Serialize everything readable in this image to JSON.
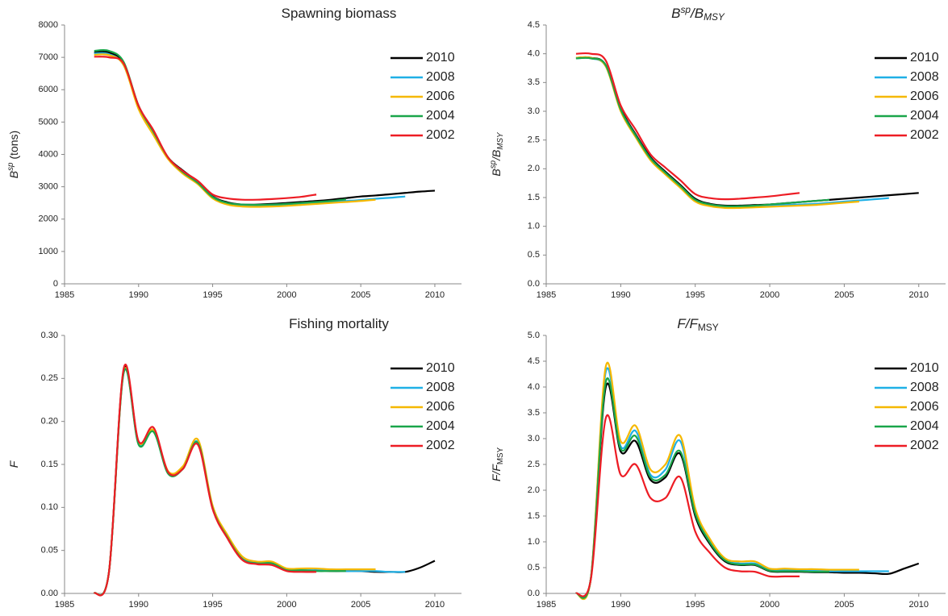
{
  "chart_data": [
    {
      "type": "line",
      "title": [
        {
          "text": "Spawning biomass"
        }
      ],
      "ylabel": [
        {
          "text": "B",
          "italic": true
        },
        {
          "text": "sp",
          "italic": true,
          "shift": "sup"
        },
        {
          "text": " (tons)"
        }
      ],
      "x": [
        1987,
        1988,
        1989,
        1990,
        1991,
        1992,
        1993,
        1994,
        1995,
        1996,
        1997,
        1998,
        1999,
        2000,
        2001,
        2002,
        2003,
        2004,
        2005,
        2006,
        2007,
        2008,
        2009,
        2010
      ],
      "xlim": [
        1985,
        2011.8
      ],
      "xticks": [
        1985,
        1990,
        1995,
        2000,
        2005,
        2010
      ],
      "ylim": [
        0,
        8000
      ],
      "yticks": [
        0,
        1000,
        2000,
        3000,
        4000,
        5000,
        6000,
        7000,
        8000
      ],
      "legend": "upper right",
      "series": [
        {
          "name": "2010",
          "color": "#000000",
          "values": [
            7150,
            7150,
            6800,
            5500,
            4700,
            3900,
            3500,
            3150,
            2700,
            2520,
            2450,
            2450,
            2470,
            2500,
            2530,
            2560,
            2600,
            2650,
            2700,
            2730,
            2770,
            2810,
            2850,
            2880
          ]
        },
        {
          "name": "2008",
          "color": "#1fb0e6",
          "values": [
            7120,
            7100,
            6750,
            5450,
            4650,
            3880,
            3450,
            3120,
            2680,
            2490,
            2420,
            2410,
            2420,
            2440,
            2470,
            2500,
            2530,
            2560,
            2590,
            2630,
            2660,
            2700,
            null,
            null
          ]
        },
        {
          "name": "2006",
          "color": "#f5b800",
          "values": [
            7080,
            7070,
            6750,
            5400,
            4600,
            3850,
            3400,
            3080,
            2640,
            2450,
            2390,
            2380,
            2390,
            2410,
            2440,
            2470,
            2500,
            2530,
            2560,
            2600,
            null,
            null,
            null,
            null
          ]
        },
        {
          "name": "2004",
          "color": "#1aa64a",
          "values": [
            7200,
            7200,
            6850,
            5500,
            4700,
            3900,
            3450,
            3120,
            2680,
            2500,
            2450,
            2440,
            2450,
            2470,
            2500,
            2530,
            2560,
            2610,
            null,
            null,
            null,
            null,
            null,
            null
          ]
        },
        {
          "name": "2002",
          "color": "#ed1c24",
          "values": [
            7020,
            7000,
            6800,
            5500,
            4750,
            3900,
            3480,
            3180,
            2760,
            2640,
            2600,
            2600,
            2620,
            2650,
            2690,
            2760,
            null,
            null,
            null,
            null,
            null,
            null,
            null,
            null
          ]
        }
      ]
    },
    {
      "type": "line",
      "title": [
        {
          "text": "B",
          "italic": true
        },
        {
          "text": "sp",
          "italic": true,
          "shift": "sup"
        },
        {
          "text": "/B",
          "italic": true
        },
        {
          "text": "MSY",
          "italic": true,
          "shift": "sub"
        }
      ],
      "ylabel": [
        {
          "text": "B",
          "italic": true
        },
        {
          "text": "sp",
          "italic": true,
          "shift": "sup"
        },
        {
          "text": "/B",
          "italic": true
        },
        {
          "text": "MSY",
          "italic": true,
          "shift": "sub"
        }
      ],
      "x": [
        1987,
        1988,
        1989,
        1990,
        1991,
        1992,
        1993,
        1994,
        1995,
        1996,
        1997,
        1998,
        1999,
        2000,
        2001,
        2002,
        2003,
        2004,
        2005,
        2006,
        2007,
        2008,
        2009,
        2010
      ],
      "xlim": [
        1985,
        2011.8
      ],
      "xticks": [
        1985,
        1990,
        1995,
        2000,
        2005,
        2010
      ],
      "ylim": [
        0,
        4.5
      ],
      "yticks": [
        {
          "value": 0,
          "label": "0.0"
        },
        0.5,
        {
          "value": 1,
          "label": "1.0"
        },
        1.5,
        {
          "value": 2,
          "label": "2.0"
        },
        2.5,
        {
          "value": 3,
          "label": "3.0"
        },
        3.5,
        {
          "value": 4,
          "label": "4.0"
        },
        4.5
      ],
      "legend": "upper right",
      "series": [
        {
          "name": "2010",
          "color": "#000000",
          "values": [
            3.93,
            3.93,
            3.8,
            3.05,
            2.6,
            2.2,
            1.95,
            1.72,
            1.48,
            1.39,
            1.36,
            1.36,
            1.37,
            1.38,
            1.4,
            1.42,
            1.44,
            1.46,
            1.48,
            1.5,
            1.52,
            1.54,
            1.56,
            1.58
          ]
        },
        {
          "name": "2008",
          "color": "#1fb0e6",
          "values": [
            3.92,
            3.92,
            3.78,
            3.02,
            2.57,
            2.17,
            1.92,
            1.69,
            1.45,
            1.37,
            1.34,
            1.34,
            1.35,
            1.36,
            1.37,
            1.38,
            1.39,
            1.41,
            1.43,
            1.45,
            1.47,
            1.49,
            null,
            null
          ]
        },
        {
          "name": "2006",
          "color": "#f5b800",
          "values": [
            3.93,
            3.93,
            3.78,
            3.0,
            2.55,
            2.15,
            1.9,
            1.67,
            1.43,
            1.35,
            1.32,
            1.32,
            1.33,
            1.34,
            1.35,
            1.36,
            1.37,
            1.39,
            1.41,
            1.43,
            null,
            null,
            null,
            null
          ]
        },
        {
          "name": "2004",
          "color": "#1aa64a",
          "values": [
            3.92,
            3.92,
            3.8,
            3.03,
            2.58,
            2.18,
            1.93,
            1.7,
            1.46,
            1.38,
            1.35,
            1.35,
            1.36,
            1.38,
            1.4,
            1.42,
            1.44,
            1.46,
            null,
            null,
            null,
            null,
            null,
            null
          ]
        },
        {
          "name": "2002",
          "color": "#ed1c24",
          "values": [
            4.0,
            4.0,
            3.88,
            3.1,
            2.68,
            2.25,
            2.02,
            1.8,
            1.56,
            1.49,
            1.47,
            1.48,
            1.5,
            1.52,
            1.55,
            1.58,
            null,
            null,
            null,
            null,
            null,
            null,
            null,
            null
          ]
        }
      ]
    },
    {
      "type": "line",
      "title": [
        {
          "text": "Fishing mortality"
        }
      ],
      "ylabel": [
        {
          "text": "F",
          "italic": true
        }
      ],
      "x": [
        1987,
        1988,
        1989,
        1990,
        1991,
        1992,
        1993,
        1994,
        1995,
        1996,
        1997,
        1998,
        1999,
        2000,
        2001,
        2002,
        2003,
        2004,
        2005,
        2006,
        2007,
        2008,
        2009,
        2010
      ],
      "xlim": [
        1985,
        2011.8
      ],
      "xticks": [
        1985,
        1990,
        1995,
        2000,
        2005,
        2010
      ],
      "ylim": [
        0,
        0.3
      ],
      "yticks": [
        {
          "value": 0,
          "label": "0.00"
        },
        {
          "value": 0.05,
          "label": "0.05"
        },
        {
          "value": 0.1,
          "label": "0.10"
        },
        {
          "value": 0.15,
          "label": "0.15"
        },
        {
          "value": 0.2,
          "label": "0.20"
        },
        {
          "value": 0.25,
          "label": "0.25"
        },
        {
          "value": 0.3,
          "label": "0.30"
        }
      ],
      "legend": "upper right",
      "series": [
        {
          "name": "2010",
          "color": "#000000",
          "values": [
            0.0,
            0.025,
            0.26,
            0.175,
            0.19,
            0.14,
            0.145,
            0.175,
            0.1,
            0.065,
            0.04,
            0.035,
            0.035,
            0.028,
            0.027,
            0.027,
            0.026,
            0.026,
            0.026,
            0.025,
            0.025,
            0.025,
            0.03,
            0.038
          ]
        },
        {
          "name": "2008",
          "color": "#1fb0e6",
          "values": [
            0.0,
            0.025,
            0.258,
            0.174,
            0.189,
            0.14,
            0.146,
            0.176,
            0.1,
            0.066,
            0.041,
            0.036,
            0.036,
            0.028,
            0.028,
            0.027,
            0.027,
            0.026,
            0.026,
            0.026,
            0.025,
            0.025,
            null,
            null
          ]
        },
        {
          "name": "2006",
          "color": "#f5b800",
          "values": [
            0.0,
            0.025,
            0.258,
            0.176,
            0.19,
            0.142,
            0.148,
            0.179,
            0.102,
            0.068,
            0.043,
            0.037,
            0.037,
            0.029,
            0.029,
            0.029,
            0.028,
            0.028,
            0.028,
            0.028,
            null,
            null,
            null,
            null
          ]
        },
        {
          "name": "2004",
          "color": "#1aa64a",
          "values": [
            0.0,
            0.025,
            0.257,
            0.173,
            0.188,
            0.139,
            0.145,
            0.175,
            0.099,
            0.065,
            0.04,
            0.035,
            0.035,
            0.027,
            0.027,
            0.026,
            0.026,
            0.026,
            null,
            null,
            null,
            null,
            null,
            null
          ]
        },
        {
          "name": "2002",
          "color": "#ed1c24",
          "values": [
            0.0,
            0.025,
            0.262,
            0.177,
            0.193,
            0.141,
            0.145,
            0.173,
            0.098,
            0.064,
            0.039,
            0.034,
            0.033,
            0.026,
            0.025,
            0.025,
            null,
            null,
            null,
            null,
            null,
            null,
            null,
            null
          ]
        }
      ]
    },
    {
      "type": "line",
      "title": [
        {
          "text": "F/F",
          "italic": true
        },
        {
          "text": "MSY",
          "shift": "sub"
        }
      ],
      "ylabel": [
        {
          "text": "F/F",
          "italic": true
        },
        {
          "text": "MSY",
          "shift": "sub"
        }
      ],
      "x": [
        1987,
        1988,
        1989,
        1990,
        1991,
        1992,
        1993,
        1994,
        1995,
        1996,
        1997,
        1998,
        1999,
        2000,
        2001,
        2002,
        2003,
        2004,
        2005,
        2006,
        2007,
        2008,
        2009,
        2010
      ],
      "xlim": [
        1985,
        2011.8
      ],
      "xticks": [
        1985,
        1990,
        1995,
        2000,
        2005,
        2010
      ],
      "ylim": [
        0,
        5
      ],
      "yticks": [
        {
          "value": 0,
          "label": "0.0"
        },
        0.5,
        {
          "value": 1,
          "label": "1.0"
        },
        1.5,
        {
          "value": 2,
          "label": "2.0"
        },
        2.5,
        {
          "value": 3,
          "label": "3.0"
        },
        3.5,
        {
          "value": 4,
          "label": "4.0"
        },
        4.5,
        {
          "value": 5,
          "label": "5.0"
        }
      ],
      "legend": "upper right",
      "series": [
        {
          "name": "2010",
          "color": "#000000",
          "values": [
            0.0,
            0.3,
            4.0,
            2.75,
            2.95,
            2.2,
            2.25,
            2.7,
            1.5,
            0.95,
            0.62,
            0.55,
            0.55,
            0.43,
            0.42,
            0.42,
            0.41,
            0.41,
            0.4,
            0.4,
            0.39,
            0.38,
            0.48,
            0.58
          ]
        },
        {
          "name": "2008",
          "color": "#1fb0e6",
          "values": [
            0.0,
            0.3,
            4.3,
            2.85,
            3.15,
            2.3,
            2.4,
            2.95,
            1.6,
            1.0,
            0.65,
            0.58,
            0.58,
            0.45,
            0.45,
            0.44,
            0.44,
            0.43,
            0.43,
            0.43,
            0.43,
            0.43,
            null,
            null
          ]
        },
        {
          "name": "2006",
          "color": "#f5b800",
          "values": [
            0.0,
            0.3,
            4.4,
            2.95,
            3.25,
            2.4,
            2.5,
            3.05,
            1.65,
            1.05,
            0.68,
            0.62,
            0.62,
            0.48,
            0.48,
            0.47,
            0.47,
            0.46,
            0.46,
            0.46,
            null,
            null,
            null,
            null
          ]
        },
        {
          "name": "2004",
          "color": "#1aa64a",
          "values": [
            0.0,
            0.3,
            4.1,
            2.8,
            3.05,
            2.25,
            2.3,
            2.75,
            1.55,
            0.98,
            0.64,
            0.56,
            0.56,
            0.44,
            0.43,
            0.43,
            0.42,
            0.42,
            null,
            null,
            null,
            null,
            null,
            null
          ]
        },
        {
          "name": "2002",
          "color": "#ed1c24",
          "values": [
            0.0,
            0.28,
            3.4,
            2.3,
            2.5,
            1.85,
            1.85,
            2.25,
            1.2,
            0.78,
            0.5,
            0.43,
            0.42,
            0.33,
            0.33,
            0.33,
            null,
            null,
            null,
            null,
            null,
            null,
            null,
            null
          ]
        }
      ]
    }
  ]
}
